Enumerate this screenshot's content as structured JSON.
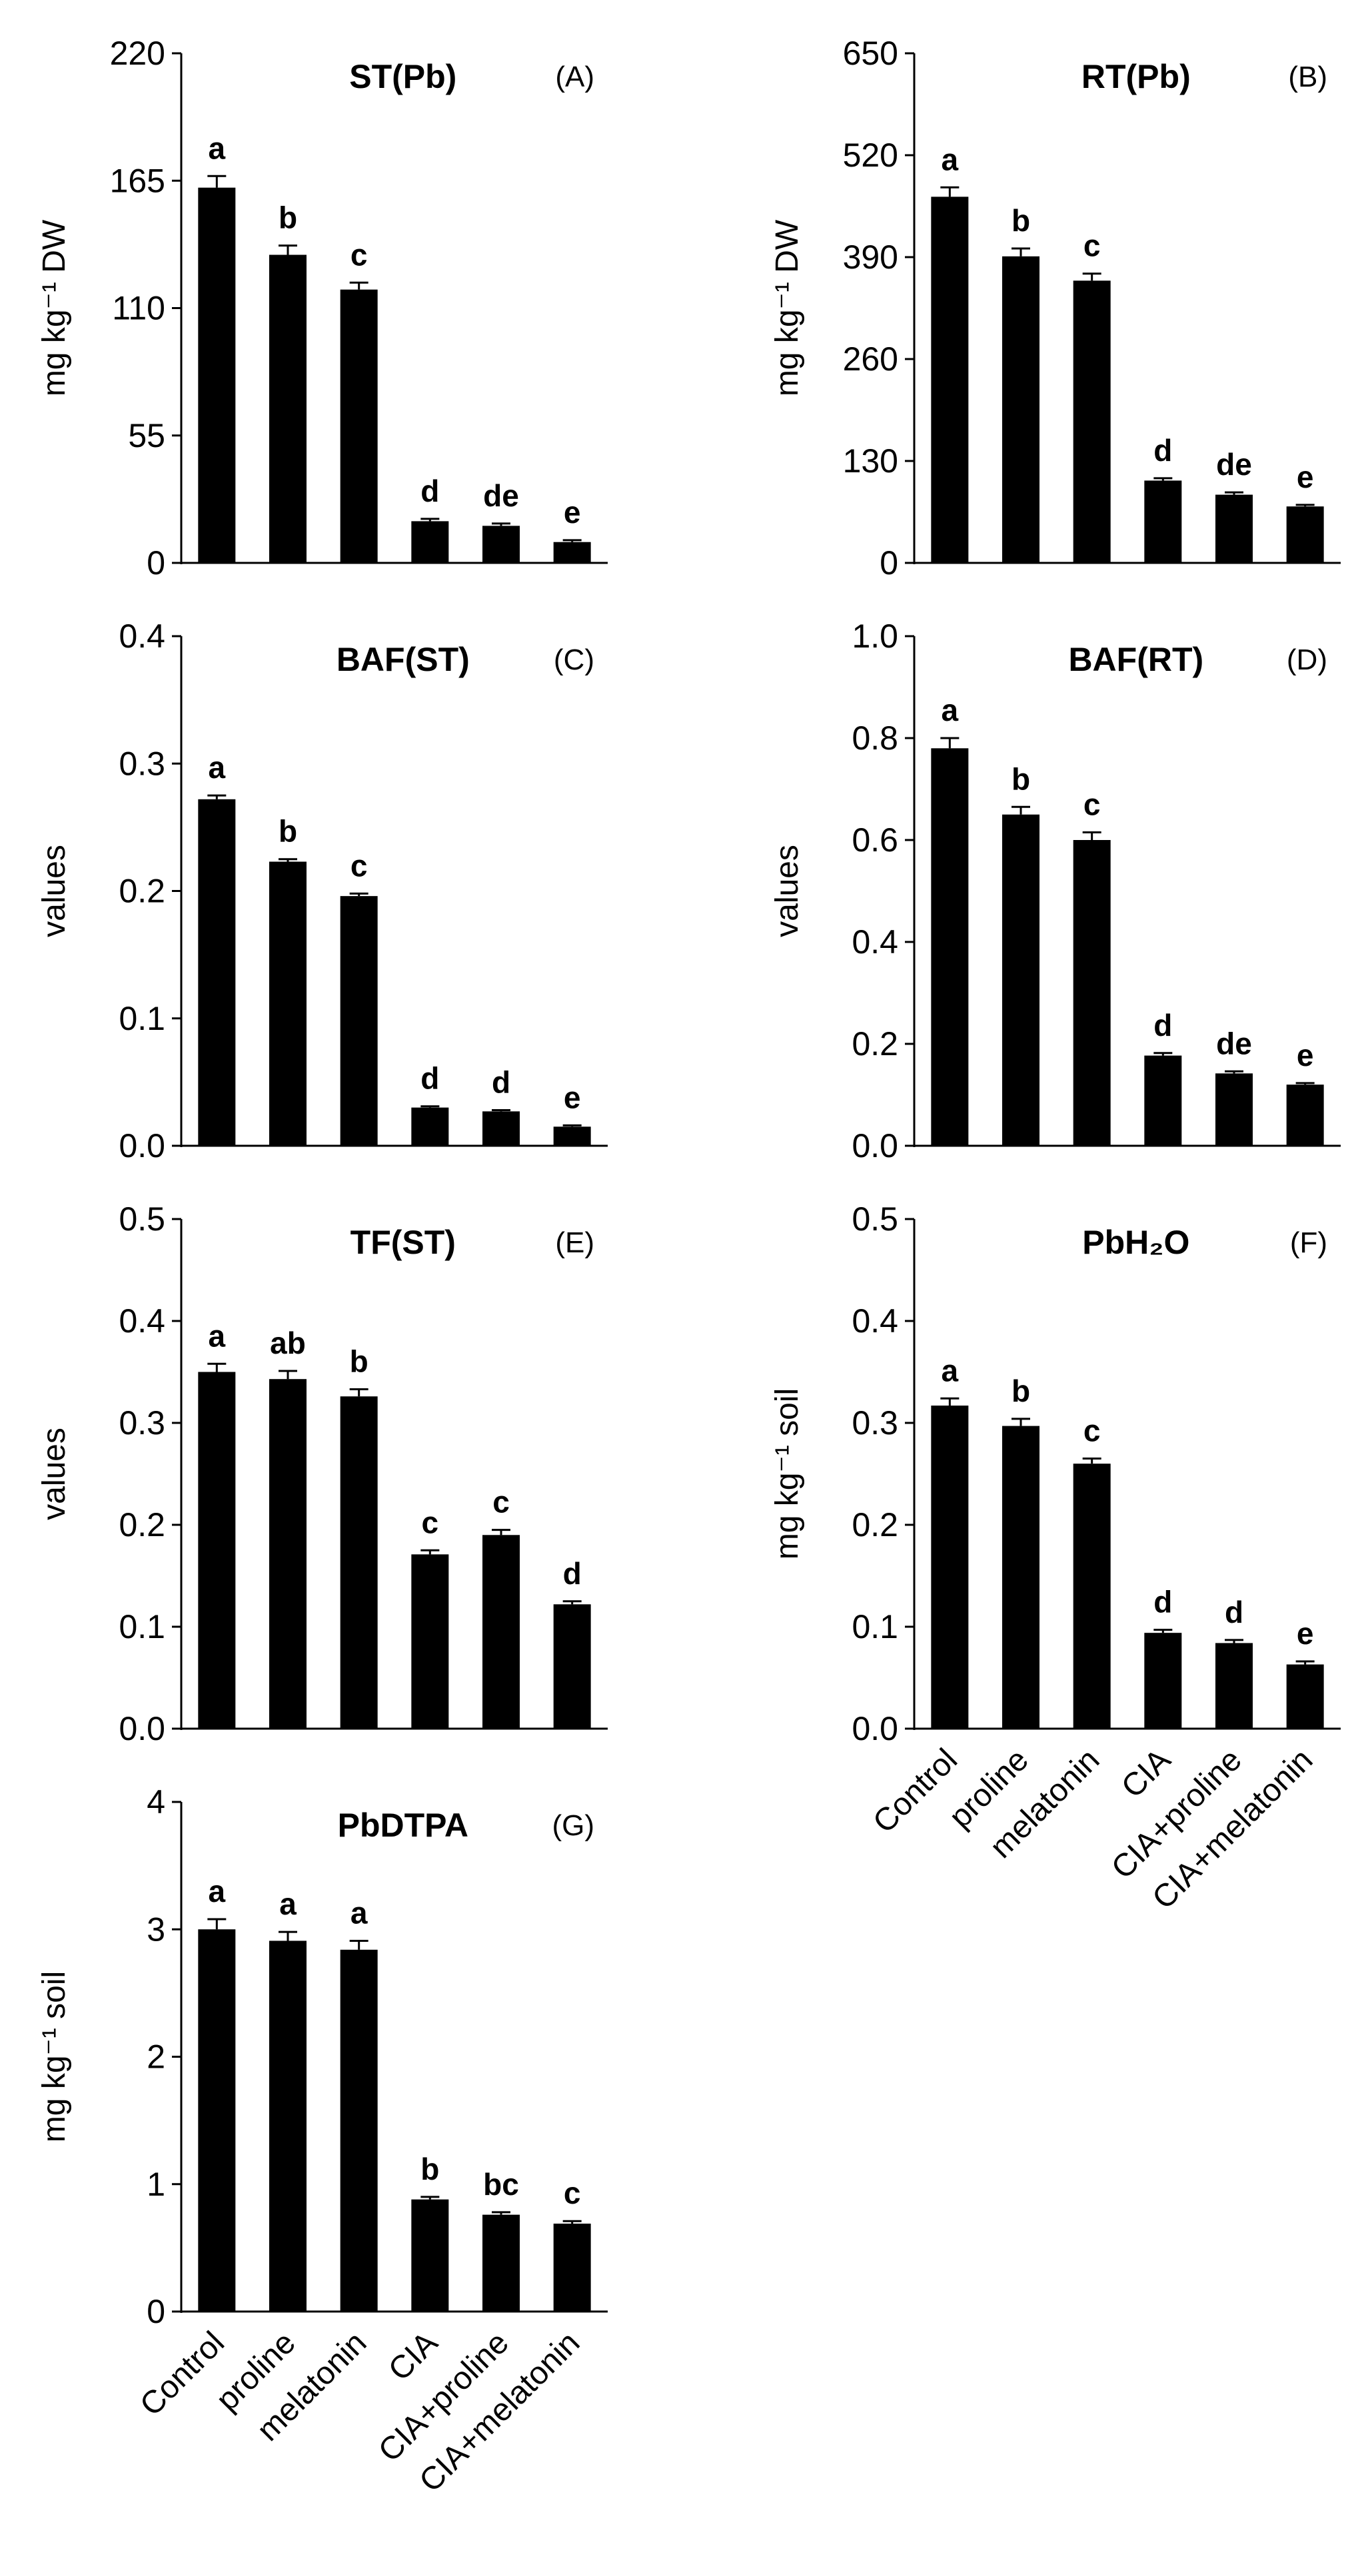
{
  "chart_data": [
    {
      "id": "A",
      "type": "bar",
      "title": "ST(Pb)",
      "panel_label": "(A)",
      "ylabel": "mg kg⁻¹ DW",
      "ylim": [
        0,
        220
      ],
      "yticks": [
        0,
        55,
        110,
        165,
        220
      ],
      "ytick_labels": [
        "0",
        "55",
        "110",
        "165",
        "220"
      ],
      "categories": [
        "Control",
        "proline",
        "melatonin",
        "CIA",
        "CIA+proline",
        "CIA+melatonin"
      ],
      "values": [
        162,
        133,
        118,
        18,
        16,
        9
      ],
      "errors": [
        5,
        4,
        3,
        1,
        1,
        0.8
      ],
      "letters": [
        "a",
        "b",
        "c",
        "d",
        "de",
        "e"
      ],
      "show_xlabels": false
    },
    {
      "id": "B",
      "type": "bar",
      "title": "RT(Pb)",
      "panel_label": "(B)",
      "ylabel": "mg kg⁻¹ DW",
      "ylim": [
        0,
        650
      ],
      "yticks": [
        0,
        130,
        260,
        390,
        520,
        650
      ],
      "ytick_labels": [
        "0",
        "130",
        "260",
        "390",
        "520",
        "650"
      ],
      "categories": [
        "Control",
        "proline",
        "melatonin",
        "CIA",
        "CIA+proline",
        "CIA+melatonin"
      ],
      "values": [
        467,
        391,
        360,
        105,
        87,
        72
      ],
      "errors": [
        12,
        10,
        9,
        3,
        3,
        2
      ],
      "letters": [
        "a",
        "b",
        "c",
        "d",
        "de",
        "e"
      ],
      "show_xlabels": false
    },
    {
      "id": "C",
      "type": "bar",
      "title": "BAF(ST)",
      "panel_label": "(C)",
      "ylabel": "values",
      "ylim": [
        0,
        0.4
      ],
      "yticks": [
        0,
        0.1,
        0.2,
        0.3,
        0.4
      ],
      "ytick_labels": [
        "0.0",
        "0.1",
        "0.2",
        "0.3",
        "0.4"
      ],
      "categories": [
        "Control",
        "proline",
        "melatonin",
        "CIA",
        "CIA+proline",
        "CIA+melatonin"
      ],
      "values": [
        0.272,
        0.223,
        0.196,
        0.03,
        0.027,
        0.015
      ],
      "errors": [
        0.003,
        0.002,
        0.002,
        0.001,
        0.001,
        0.001
      ],
      "letters": [
        "a",
        "b",
        "c",
        "d",
        "d",
        "e"
      ],
      "show_xlabels": false
    },
    {
      "id": "D",
      "type": "bar",
      "title": "BAF(RT)",
      "panel_label": "(D)",
      "ylabel": "values",
      "ylim": [
        0,
        1.0
      ],
      "yticks": [
        0,
        0.2,
        0.4,
        0.6,
        0.8,
        1.0
      ],
      "ytick_labels": [
        "0.0",
        "0.2",
        "0.4",
        "0.6",
        "0.8",
        "1.0"
      ],
      "categories": [
        "Control",
        "proline",
        "melatonin",
        "CIA",
        "CIA+proline",
        "CIA+melatonin"
      ],
      "values": [
        0.78,
        0.65,
        0.6,
        0.177,
        0.142,
        0.12
      ],
      "errors": [
        0.02,
        0.015,
        0.015,
        0.005,
        0.004,
        0.003
      ],
      "letters": [
        "a",
        "b",
        "c",
        "d",
        "de",
        "e"
      ],
      "show_xlabels": false
    },
    {
      "id": "E",
      "type": "bar",
      "title": "TF(ST)",
      "panel_label": "(E)",
      "ylabel": "values",
      "ylim": [
        0,
        0.5
      ],
      "yticks": [
        0,
        0.1,
        0.2,
        0.3,
        0.4,
        0.5
      ],
      "ytick_labels": [
        "0.0",
        "0.1",
        "0.2",
        "0.3",
        "0.4",
        "0.5"
      ],
      "categories": [
        "Control",
        "proline",
        "melatonin",
        "CIA",
        "CIA+proline",
        "CIA+melatonin"
      ],
      "values": [
        0.35,
        0.343,
        0.326,
        0.171,
        0.19,
        0.122
      ],
      "errors": [
        0.008,
        0.008,
        0.007,
        0.004,
        0.005,
        0.003
      ],
      "letters": [
        "a",
        "ab",
        "b",
        "c",
        "c",
        "d"
      ],
      "show_xlabels": false
    },
    {
      "id": "F",
      "type": "bar",
      "title": "PbH₂O",
      "panel_label": "(F)",
      "ylabel": "mg kg⁻¹ soil",
      "ylim": [
        0,
        0.5
      ],
      "yticks": [
        0,
        0.1,
        0.2,
        0.3,
        0.4,
        0.5
      ],
      "ytick_labels": [
        "0.0",
        "0.1",
        "0.2",
        "0.3",
        "0.4",
        "0.5"
      ],
      "categories": [
        "Control",
        "proline",
        "melatonin",
        "CIA",
        "CIA+proline",
        "CIA+melatonin"
      ],
      "values": [
        0.317,
        0.297,
        0.26,
        0.094,
        0.084,
        0.063
      ],
      "errors": [
        0.007,
        0.007,
        0.005,
        0.003,
        0.003,
        0.003
      ],
      "letters": [
        "a",
        "b",
        "c",
        "d",
        "d",
        "e"
      ],
      "show_xlabels": true
    },
    {
      "id": "G",
      "type": "bar",
      "title": "PbDTPA",
      "panel_label": "(G)",
      "ylabel": "mg kg⁻¹ soil",
      "ylim": [
        0,
        4
      ],
      "yticks": [
        0,
        1,
        2,
        3,
        4
      ],
      "ytick_labels": [
        "0",
        "1",
        "2",
        "3",
        "4"
      ],
      "categories": [
        "Control",
        "proline",
        "melatonin",
        "CIA",
        "CIA+proline",
        "CIA+melatonin"
      ],
      "values": [
        3.0,
        2.91,
        2.84,
        0.88,
        0.76,
        0.69
      ],
      "errors": [
        0.08,
        0.07,
        0.07,
        0.02,
        0.02,
        0.02
      ],
      "letters": [
        "a",
        "a",
        "a",
        "b",
        "bc",
        "c"
      ],
      "show_xlabels": true
    }
  ]
}
